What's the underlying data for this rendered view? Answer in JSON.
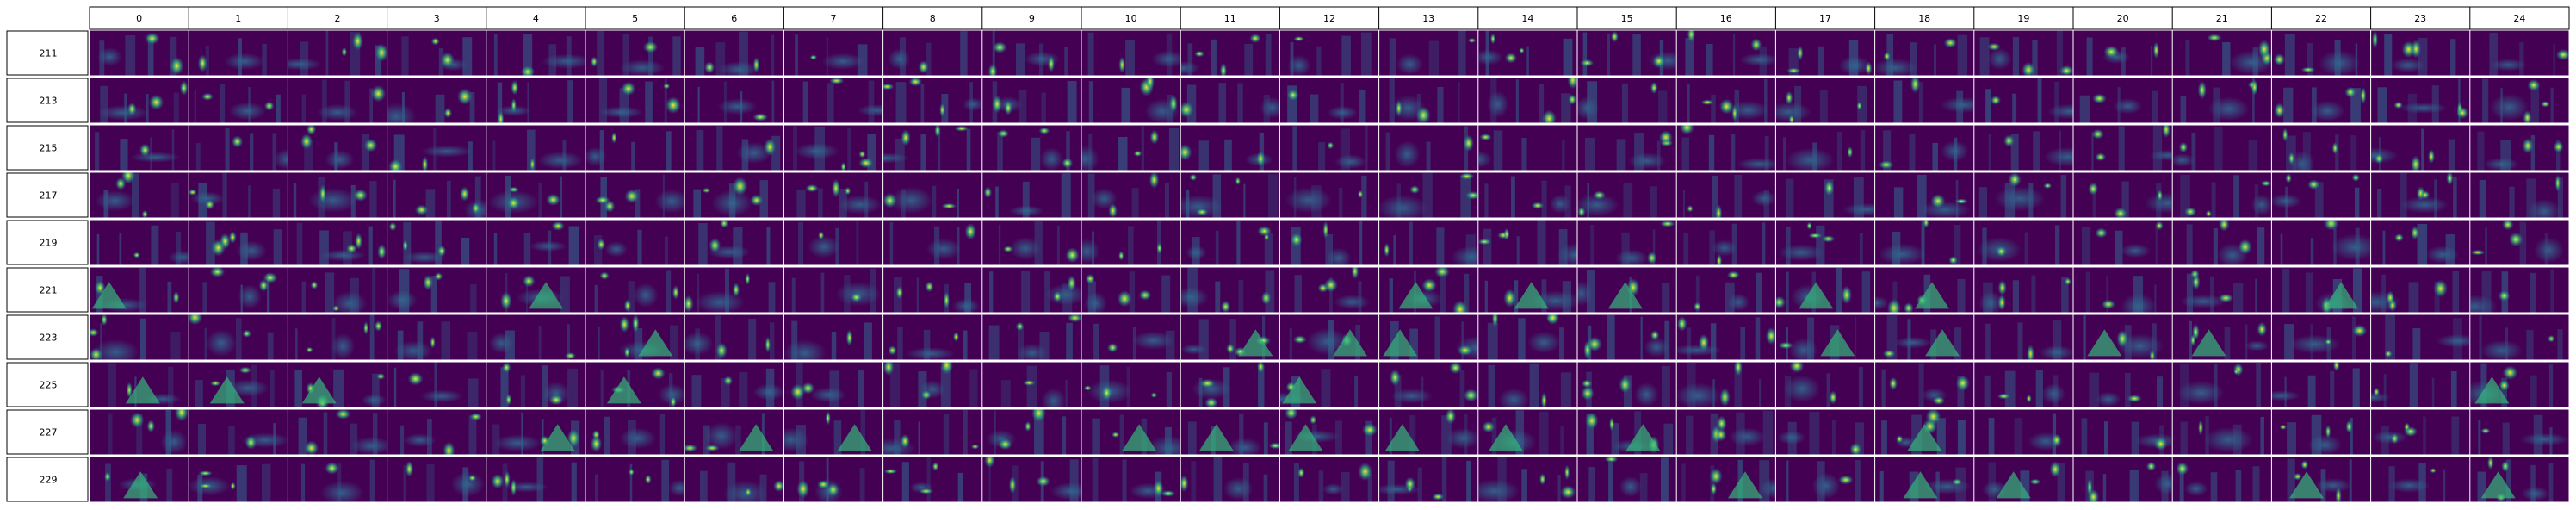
{
  "grid": {
    "columns": [
      "0",
      "1",
      "2",
      "3",
      "4",
      "5",
      "6",
      "7",
      "8",
      "9",
      "10",
      "11",
      "12",
      "13",
      "14",
      "15",
      "16",
      "17",
      "18",
      "19",
      "20",
      "21",
      "22",
      "23",
      "24"
    ],
    "rows": [
      "211",
      "213",
      "215",
      "217",
      "219",
      "221",
      "223",
      "225",
      "227",
      "229"
    ]
  },
  "colors": {
    "background": "#440154",
    "mid": "#31688e",
    "teal": "#35b779",
    "bright": "#fde725",
    "border": "#000000"
  }
}
